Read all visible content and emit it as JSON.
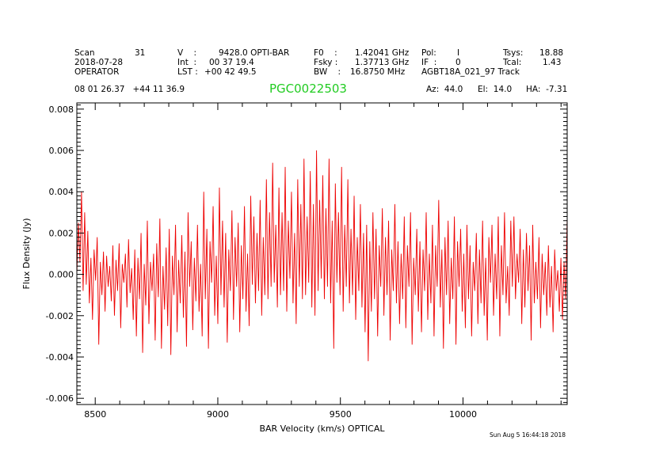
{
  "header": {
    "scan_label": "Scan",
    "scan_value": "31",
    "date": "2018-07-28",
    "operator": "OPERATOR",
    "v_label": "V    :",
    "v_value": "9428.0 OPTI-BAR",
    "int_label": "Int  :",
    "int_value": "00 37 19.4",
    "lst_label": "LST :",
    "lst_value": "+00 42 49.5",
    "f0_label": "F0    :",
    "f0_value": "1.42041 GHz",
    "fsky_label": "Fsky :",
    "fsky_value": "1.37713 GHz",
    "bw_label": "BW    :",
    "bw_value": "16.8750 MHz",
    "pol_label": "Pol:",
    "pol_value": "I",
    "if_label": "IF  :",
    "if_value": "0",
    "project": "AGBT18A_021_97 Track",
    "tsys_label": "Tsys:",
    "tsys_value": "18.88",
    "tcal_label": "Tcal:",
    "tcal_value": "1.43",
    "coords": "08 01 26.37   +44 11 36.9",
    "source": "PGC0022503",
    "az": "Az:  44.0",
    "el": "El:  14.0",
    "ha": "HA:  -7.31"
  },
  "footer": {
    "timestamp": "Sun Aug  5 16:44:18 2018"
  },
  "colors": {
    "trace": "#ee0000",
    "title": "#22cc22",
    "axes": "#000000"
  },
  "chart_data": {
    "type": "line",
    "title": "PGC0022503",
    "xlabel": "BAR Velocity (km/s) OPTICAL",
    "ylabel": "Flux Density (Jy)",
    "xlim": [
      8425,
      10425
    ],
    "ylim": [
      -0.0063,
      0.0083
    ],
    "xticks": [
      8500,
      9000,
      9500,
      10000
    ],
    "xtick_labels": [
      "8500",
      "9000",
      "9500",
      "10000"
    ],
    "yticks": [
      -0.006,
      -0.004,
      -0.002,
      0.0,
      0.002,
      0.004,
      0.006,
      0.008
    ],
    "ytick_labels": [
      "-0.006",
      "-0.004",
      "-0.002",
      "0.000",
      "0.002",
      "0.004",
      "0.006",
      "0.008"
    ],
    "series": [
      {
        "name": "spectrum",
        "x_start": 8425,
        "x_end": 10425,
        "values": [
          0.0,
          0.0025,
          0.0006,
          0.004,
          -0.0008,
          0.003,
          -0.0005,
          0.0021,
          -0.0014,
          0.0008,
          -0.0022,
          0.0012,
          -0.0003,
          0.0018,
          -0.0034,
          0.0006,
          -0.001,
          0.0011,
          -0.0018,
          0.0009,
          -0.0006,
          0.0004,
          -0.0013,
          0.0014,
          -0.002,
          0.0007,
          -0.0008,
          0.0015,
          -0.0026,
          0.0005,
          -0.0004,
          0.001,
          -0.0016,
          0.0017,
          -0.0009,
          0.0003,
          -0.0022,
          0.0012,
          -0.003,
          0.0008,
          -0.0012,
          0.002,
          -0.0038,
          0.0005,
          -0.0015,
          0.0026,
          -0.0024,
          0.0006,
          -0.0008,
          0.001,
          -0.0032,
          0.0015,
          -0.0011,
          0.0027,
          -0.0036,
          0.0004,
          -0.0017,
          0.0013,
          -0.0025,
          0.0022,
          -0.0039,
          0.0009,
          -0.001,
          0.0024,
          -0.0028,
          0.0007,
          -0.0014,
          0.0019,
          -0.0021,
          0.0011,
          -0.0035,
          0.003,
          -0.0006,
          0.0016,
          -0.0027,
          0.0008,
          -0.0013,
          0.0024,
          -0.0018,
          0.0005,
          -0.003,
          0.004,
          -0.0012,
          0.0022,
          -0.0036,
          0.0016,
          -0.0004,
          0.0033,
          -0.002,
          0.0009,
          -0.0024,
          0.0042,
          -0.001,
          0.0026,
          -0.0016,
          0.002,
          -0.0033,
          0.0012,
          -0.0008,
          0.0031,
          -0.0022,
          0.0018,
          -0.0006,
          0.0025,
          -0.0028,
          0.0014,
          -0.0012,
          0.0033,
          -0.0018,
          0.001,
          -0.0025,
          0.0038,
          -0.0005,
          0.0028,
          -0.0014,
          0.002,
          -0.0008,
          0.0036,
          -0.002,
          0.0018,
          -0.001,
          0.0046,
          -0.0012,
          0.003,
          -0.0006,
          0.0054,
          -0.0004,
          0.0024,
          -0.0016,
          0.0042,
          -0.001,
          0.003,
          -0.0008,
          0.0052,
          -0.0018,
          0.0026,
          -0.0002,
          0.004,
          -0.0014,
          0.002,
          -0.0024,
          0.0046,
          -0.0006,
          0.0034,
          -0.0012,
          0.0056,
          -0.001,
          0.0028,
          -0.0004,
          0.005,
          -0.0016,
          0.0034,
          -0.002,
          0.006,
          -0.0008,
          0.0036,
          -0.0002,
          0.0048,
          -0.0012,
          0.0032,
          -0.0006,
          0.0056,
          -0.0014,
          0.0026,
          -0.0036,
          0.0044,
          -0.0004,
          0.003,
          -0.001,
          0.0052,
          -0.0018,
          0.0024,
          -0.0006,
          0.0046,
          -0.0014,
          0.0022,
          -0.001,
          0.0038,
          -0.0022,
          0.0018,
          -0.0008,
          0.0034,
          -0.0016,
          0.002,
          -0.0028,
          0.0024,
          -0.0042,
          0.0016,
          -0.0018,
          0.003,
          -0.0012,
          0.0022,
          -0.003,
          0.0014,
          -0.0006,
          0.0032,
          -0.002,
          0.0018,
          -0.001,
          0.0026,
          -0.0032,
          0.0012,
          -0.0008,
          0.0034,
          -0.0014,
          0.0016,
          -0.0024,
          0.001,
          -0.0012,
          0.0028,
          -0.0026,
          0.0014,
          -0.0006,
          0.003,
          -0.0034,
          0.0008,
          -0.001,
          0.0022,
          -0.0018,
          0.0016,
          -0.0028,
          0.0012,
          -0.0008,
          0.003,
          -0.0022,
          0.001,
          -0.0014,
          0.0024,
          -0.003,
          0.0014,
          -0.0006,
          0.0036,
          -0.0016,
          0.0012,
          -0.0036,
          0.0018,
          -0.001,
          0.0026,
          -0.0024,
          0.0008,
          -0.0012,
          0.0028,
          -0.0034,
          0.0016,
          -0.0006,
          0.0022,
          -0.0018,
          0.001,
          -0.0026,
          0.0024,
          -0.0012,
          0.0014,
          -0.003,
          0.0006,
          -0.0008,
          0.002,
          -0.0024,
          0.0012,
          -0.0014,
          0.0026,
          -0.002,
          0.0008,
          -0.0032,
          0.0018,
          -0.0004,
          0.0024,
          -0.002,
          0.001,
          -0.0012,
          0.0028,
          -0.003,
          0.0014,
          -0.001,
          0.003,
          -0.0014,
          0.0004,
          -0.002,
          0.0026,
          -0.0006,
          0.0028,
          -0.0012,
          0.001,
          -0.0004,
          0.0022,
          -0.0024,
          0.0012,
          -0.0016,
          0.002,
          -0.0008,
          0.0014,
          -0.0032,
          0.0024,
          -0.0014,
          0.0006,
          -0.0012,
          0.0018,
          -0.0026,
          0.001,
          -0.001,
          0.0006,
          -0.002,
          0.0014,
          -0.0016,
          0.0004,
          -0.0028,
          0.0012,
          -0.0008,
          0.0002,
          -0.0018,
          0.0008,
          -0.0022,
          0.0006,
          -0.0012,
          0.0028
        ]
      }
    ]
  }
}
